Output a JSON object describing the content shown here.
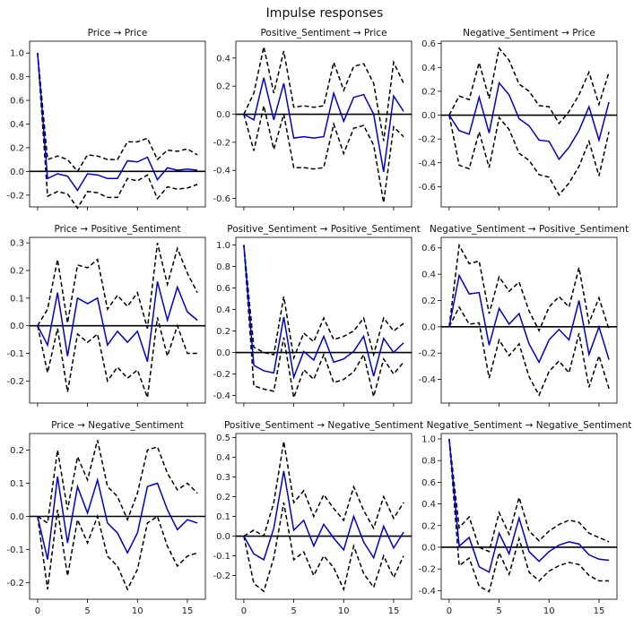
{
  "figure": {
    "title": "Impulse responses"
  },
  "chart_data": [
    {
      "type": "line",
      "title": "Price → Price",
      "x": [
        0,
        1,
        2,
        3,
        4,
        5,
        6,
        7,
        8,
        9,
        10,
        11,
        12,
        13,
        14,
        15,
        16
      ],
      "ylim": [
        -0.3,
        1.1
      ],
      "yticks": [
        -0.2,
        0.0,
        0.2,
        0.4,
        0.6,
        0.8,
        1.0
      ],
      "irf": [
        1.0,
        -0.06,
        -0.02,
        -0.04,
        -0.16,
        -0.02,
        -0.03,
        -0.06,
        -0.06,
        0.09,
        0.08,
        0.12,
        -0.07,
        0.03,
        0.01,
        0.02,
        0.01
      ],
      "upper": [
        1.0,
        0.1,
        0.13,
        0.1,
        0.0,
        0.14,
        0.13,
        0.1,
        0.1,
        0.25,
        0.25,
        0.28,
        0.1,
        0.18,
        0.17,
        0.19,
        0.14
      ],
      "lower": [
        1.0,
        -0.21,
        -0.17,
        -0.19,
        -0.31,
        -0.17,
        -0.18,
        -0.22,
        -0.22,
        -0.06,
        -0.08,
        -0.03,
        -0.23,
        -0.13,
        -0.15,
        -0.14,
        -0.11
      ]
    },
    {
      "type": "line",
      "title": "Positive_Sentiment → Price",
      "x": [
        0,
        1,
        2,
        3,
        4,
        5,
        6,
        7,
        8,
        9,
        10,
        11,
        12,
        13,
        14,
        15,
        16
      ],
      "ylim": [
        -0.66,
        0.52
      ],
      "yticks": [
        -0.6,
        -0.4,
        -0.2,
        0.0,
        0.2,
        0.4
      ],
      "irf": [
        0.0,
        -0.04,
        0.26,
        -0.04,
        0.22,
        -0.17,
        -0.16,
        -0.17,
        -0.16,
        0.15,
        -0.05,
        0.12,
        0.14,
        0.0,
        -0.41,
        0.13,
        0.02
      ],
      "upper": [
        0.0,
        0.15,
        0.48,
        0.15,
        0.45,
        0.05,
        0.06,
        0.05,
        0.06,
        0.37,
        0.17,
        0.34,
        0.36,
        0.22,
        -0.19,
        0.37,
        0.22
      ],
      "lower": [
        0.0,
        -0.26,
        0.06,
        -0.25,
        0.0,
        -0.38,
        -0.38,
        -0.39,
        -0.38,
        -0.07,
        -0.28,
        -0.1,
        -0.08,
        -0.22,
        -0.63,
        -0.09,
        -0.16
      ]
    },
    {
      "type": "line",
      "title": "Negative_Sentiment → Price",
      "x": [
        0,
        1,
        2,
        3,
        4,
        5,
        6,
        7,
        8,
        9,
        10,
        11,
        12,
        13,
        14,
        15,
        16
      ],
      "ylim": [
        -0.77,
        0.62
      ],
      "yticks": [
        -0.6,
        -0.4,
        -0.2,
        0.0,
        0.2,
        0.4,
        0.6
      ],
      "irf": [
        0.0,
        -0.13,
        -0.16,
        0.15,
        -0.15,
        0.27,
        0.17,
        -0.03,
        -0.09,
        -0.21,
        -0.22,
        -0.37,
        -0.27,
        -0.13,
        0.07,
        -0.21,
        0.11
      ],
      "upper": [
        0.0,
        0.16,
        0.13,
        0.44,
        0.14,
        0.56,
        0.46,
        0.26,
        0.2,
        0.08,
        0.07,
        -0.07,
        0.03,
        0.17,
        0.36,
        0.09,
        0.36
      ],
      "lower": [
        0.0,
        -0.42,
        -0.45,
        -0.14,
        -0.44,
        -0.02,
        -0.12,
        -0.32,
        -0.38,
        -0.5,
        -0.52,
        -0.67,
        -0.57,
        -0.43,
        -0.22,
        -0.51,
        -0.14
      ]
    },
    {
      "type": "line",
      "title": "Price → Positive_Sentiment",
      "x": [
        0,
        1,
        2,
        3,
        4,
        5,
        6,
        7,
        8,
        9,
        10,
        11,
        12,
        13,
        14,
        15,
        16
      ],
      "ylim": [
        -0.28,
        0.32
      ],
      "yticks": [
        -0.2,
        -0.1,
        0.0,
        0.1,
        0.2,
        0.3
      ],
      "irf": [
        0.0,
        -0.07,
        0.12,
        -0.11,
        0.1,
        0.08,
        0.1,
        -0.07,
        -0.02,
        -0.06,
        -0.02,
        -0.13,
        0.16,
        0.02,
        0.14,
        0.05,
        0.02
      ],
      "upper": [
        0.0,
        0.06,
        0.24,
        0.01,
        0.22,
        0.21,
        0.24,
        0.06,
        0.11,
        0.07,
        0.12,
        -0.01,
        0.3,
        0.15,
        0.28,
        0.19,
        0.12
      ],
      "lower": [
        0.0,
        -0.17,
        -0.01,
        -0.24,
        -0.03,
        -0.06,
        -0.03,
        -0.2,
        -0.15,
        -0.19,
        -0.16,
        -0.26,
        0.03,
        -0.11,
        0.0,
        -0.1,
        -0.1
      ]
    },
    {
      "type": "line",
      "title": "Positive_Sentiment → Positive_Sentiment",
      "x": [
        0,
        1,
        2,
        3,
        4,
        5,
        6,
        7,
        8,
        9,
        10,
        11,
        12,
        13,
        14,
        15,
        16
      ],
      "ylim": [
        -0.47,
        1.07
      ],
      "yticks": [
        -0.4,
        -0.2,
        0.0,
        0.2,
        0.4,
        0.6,
        0.8,
        1.0
      ],
      "irf": [
        1.0,
        -0.12,
        -0.17,
        -0.19,
        0.33,
        -0.23,
        0.01,
        -0.07,
        0.15,
        -0.09,
        -0.06,
        0.01,
        0.15,
        -0.22,
        0.13,
        0.0,
        0.09
      ],
      "upper": [
        1.0,
        0.05,
        0.0,
        -0.02,
        0.52,
        -0.05,
        0.18,
        0.1,
        0.32,
        0.12,
        0.15,
        0.2,
        0.32,
        -0.02,
        0.32,
        0.2,
        0.27
      ],
      "lower": [
        1.0,
        -0.31,
        -0.34,
        -0.36,
        0.14,
        -0.42,
        -0.16,
        -0.25,
        -0.02,
        -0.28,
        -0.25,
        -0.18,
        -0.02,
        -0.41,
        -0.06,
        -0.2,
        -0.09
      ]
    },
    {
      "type": "line",
      "title": "Negative_Sentiment → Positive_Sentiment",
      "x": [
        0,
        1,
        2,
        3,
        4,
        5,
        6,
        7,
        8,
        9,
        10,
        11,
        12,
        13,
        14,
        15,
        16
      ],
      "ylim": [
        -0.58,
        0.68
      ],
      "yticks": [
        -0.4,
        -0.2,
        0.0,
        0.2,
        0.4,
        0.6
      ],
      "irf": [
        0.0,
        0.39,
        0.25,
        0.26,
        -0.14,
        0.14,
        0.02,
        0.1,
        -0.13,
        -0.27,
        -0.1,
        -0.02,
        -0.1,
        0.2,
        -0.21,
        0.0,
        -0.25
      ],
      "upper": [
        0.0,
        0.62,
        0.48,
        0.5,
        0.1,
        0.38,
        0.27,
        0.34,
        0.12,
        -0.03,
        0.15,
        0.23,
        0.15,
        0.45,
        0.03,
        0.22,
        -0.02
      ],
      "lower": [
        0.0,
        0.15,
        0.02,
        0.03,
        -0.39,
        -0.1,
        -0.22,
        -0.13,
        -0.38,
        -0.52,
        -0.34,
        -0.26,
        -0.35,
        -0.05,
        -0.46,
        -0.22,
        -0.47
      ]
    },
    {
      "type": "line",
      "title": "Price → Negative_Sentiment",
      "x": [
        0,
        1,
        2,
        3,
        4,
        5,
        6,
        7,
        8,
        9,
        10,
        11,
        12,
        13,
        14,
        15,
        16
      ],
      "ylim": [
        -0.25,
        0.25
      ],
      "yticks": [
        -0.2,
        -0.1,
        0.0,
        0.1,
        0.2
      ],
      "irf": [
        0.0,
        -0.13,
        0.12,
        -0.08,
        0.09,
        0.01,
        0.11,
        -0.02,
        -0.05,
        -0.11,
        -0.05,
        0.09,
        0.1,
        0.02,
        -0.04,
        -0.01,
        -0.02
      ],
      "upper": [
        0.0,
        -0.02,
        0.2,
        0.02,
        0.18,
        0.11,
        0.23,
        0.09,
        0.06,
        -0.01,
        0.07,
        0.2,
        0.21,
        0.13,
        0.08,
        0.1,
        0.07
      ],
      "lower": [
        0.0,
        -0.22,
        0.02,
        -0.18,
        -0.01,
        -0.08,
        0.0,
        -0.12,
        -0.15,
        -0.22,
        -0.16,
        -0.02,
        0.0,
        -0.09,
        -0.15,
        -0.12,
        -0.11
      ]
    },
    {
      "type": "line",
      "title": "Positive_Sentiment → Negative_Sentiment",
      "x": [
        0,
        1,
        2,
        3,
        4,
        5,
        6,
        7,
        8,
        9,
        10,
        11,
        12,
        13,
        14,
        15,
        16
      ],
      "ylim": [
        -0.32,
        0.52
      ],
      "yticks": [
        -0.2,
        -0.1,
        0.0,
        0.1,
        0.2,
        0.3,
        0.4,
        0.5
      ],
      "irf": [
        0.0,
        -0.09,
        -0.12,
        0.04,
        0.33,
        0.03,
        0.08,
        -0.05,
        0.06,
        -0.01,
        -0.07,
        0.1,
        -0.03,
        -0.11,
        0.05,
        -0.06,
        0.02
      ],
      "upper": [
        0.0,
        0.03,
        0.0,
        0.17,
        0.48,
        0.17,
        0.23,
        0.1,
        0.21,
        0.14,
        0.08,
        0.25,
        0.13,
        0.04,
        0.2,
        0.09,
        0.17
      ],
      "lower": [
        0.0,
        -0.24,
        -0.28,
        -0.11,
        0.17,
        -0.12,
        -0.08,
        -0.2,
        -0.1,
        -0.16,
        -0.27,
        -0.05,
        -0.19,
        -0.26,
        -0.1,
        -0.21,
        -0.1
      ]
    },
    {
      "type": "line",
      "title": "Negative_Sentiment → Negative_Sentiment",
      "x": [
        0,
        1,
        2,
        3,
        4,
        5,
        6,
        7,
        8,
        9,
        10,
        11,
        12,
        13,
        14,
        15,
        16
      ],
      "ylim": [
        -0.48,
        1.05
      ],
      "yticks": [
        -0.4,
        -0.2,
        0.0,
        0.2,
        0.4,
        0.6,
        0.8,
        1.0
      ],
      "irf": [
        1.0,
        0.01,
        0.09,
        -0.18,
        -0.23,
        0.13,
        -0.06,
        0.27,
        -0.04,
        -0.13,
        -0.04,
        0.02,
        0.05,
        0.03,
        -0.07,
        -0.11,
        -0.12
      ],
      "upper": [
        1.0,
        0.18,
        0.28,
        0.0,
        -0.04,
        0.32,
        0.12,
        0.46,
        0.15,
        0.06,
        0.15,
        0.21,
        0.25,
        0.23,
        0.13,
        0.09,
        0.05
      ],
      "lower": [
        1.0,
        -0.17,
        -0.1,
        -0.36,
        -0.41,
        -0.05,
        -0.25,
        0.08,
        -0.23,
        -0.31,
        -0.22,
        -0.17,
        -0.14,
        -0.16,
        -0.26,
        -0.31,
        -0.31
      ]
    }
  ],
  "xticks": [
    0,
    5,
    10,
    15
  ],
  "xlim": [
    -0.8,
    16.8
  ],
  "colors": {
    "irf": "#0000cc",
    "band": "#000000",
    "zero": "#000000",
    "axes": "#000000"
  }
}
